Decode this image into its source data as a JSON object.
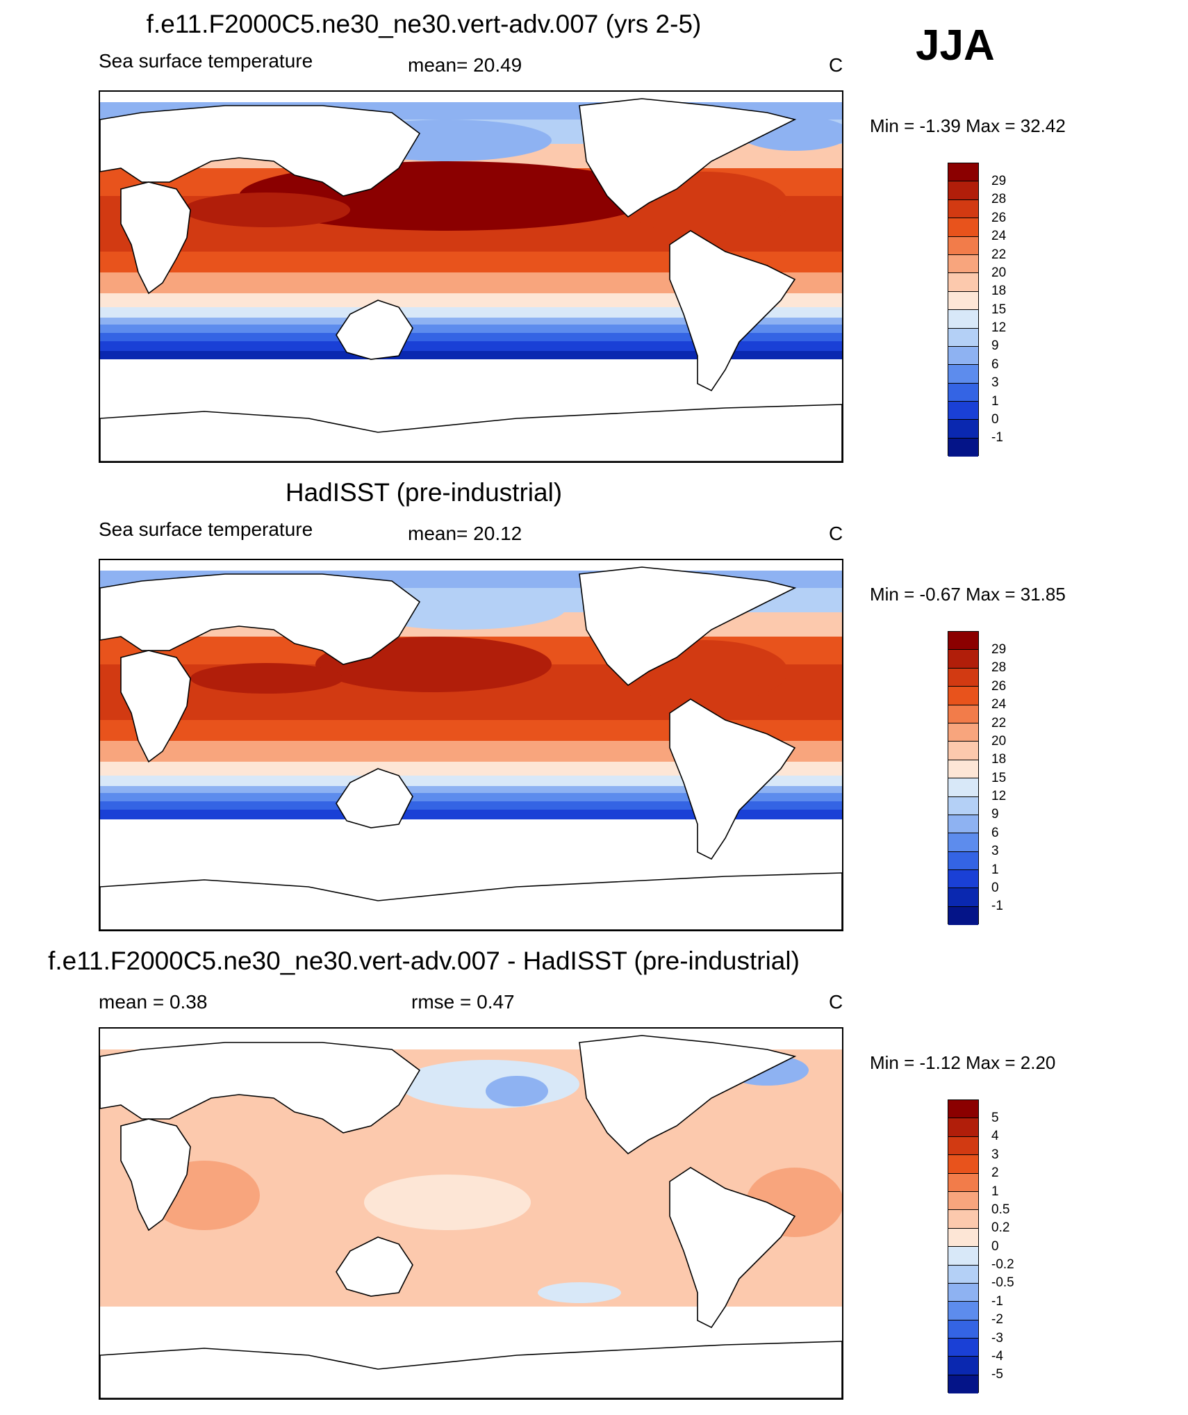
{
  "season": "JJA",
  "panels": [
    {
      "title": "f.e11.F2000C5.ne30_ne30.vert-adv.007 (yrs 2-5)",
      "left_label": "Sea surface temperature",
      "mid_label": "mean=  20.49",
      "units": "C",
      "minmax": "Min =  -1.39 Max =  32.42",
      "colorbar_labels": [
        "29",
        "28",
        "26",
        "24",
        "22",
        "20",
        "18",
        "15",
        "12",
        "9",
        "6",
        "3",
        "1",
        "0",
        "-1"
      ]
    },
    {
      "title": "HadISST (pre-industrial)",
      "left_label": "Sea surface temperature",
      "mid_label": "mean=  20.12",
      "units": "C",
      "minmax": "Min =  -0.67 Max =  31.85",
      "colorbar_labels": [
        "29",
        "28",
        "26",
        "24",
        "22",
        "20",
        "18",
        "15",
        "12",
        "9",
        "6",
        "3",
        "1",
        "0",
        "-1"
      ]
    },
    {
      "title": "f.e11.F2000C5.ne30_ne30.vert-adv.007 - HadISST (pre-industrial)",
      "left_label": "mean =   0.38",
      "mid_label": "rmse =    0.47",
      "units": "C",
      "minmax": "Min =  -1.12 Max =    2.20",
      "colorbar_labels": [
        "5",
        "4",
        "3",
        "2",
        "1",
        "0.5",
        "0.2",
        "0",
        "-0.2",
        "-0.5",
        "-1",
        "-2",
        "-3",
        "-4",
        "-5"
      ]
    }
  ],
  "colors": {
    "sst_scale": [
      "#8b0000",
      "#b11e0a",
      "#d23a12",
      "#e8531c",
      "#f27c4a",
      "#f8a57d",
      "#fcc9ad",
      "#fde6d6",
      "#d8e8f8",
      "#b4d0f6",
      "#8eb2f2",
      "#5d8ced",
      "#3464e4",
      "#1a40d6",
      "#0a28b0",
      "#041488"
    ],
    "diff_scale": [
      "#8b0000",
      "#b11e0a",
      "#d23a12",
      "#e8531c",
      "#f27c4a",
      "#f8a57d",
      "#fcc9ad",
      "#fde6d6",
      "#d8e8f8",
      "#b4d0f6",
      "#8eb2f2",
      "#5d8ced",
      "#3464e4",
      "#1a40d6",
      "#0a28b0",
      "#041488"
    ],
    "land": "#ffffff",
    "coast": "#000000"
  }
}
